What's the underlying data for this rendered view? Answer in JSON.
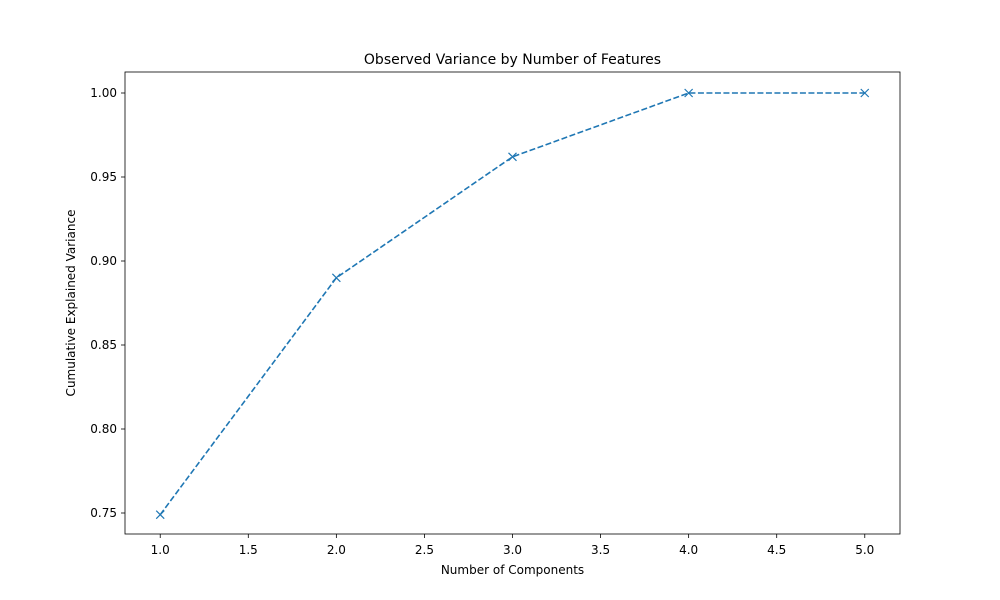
{
  "chart_data": {
    "type": "line",
    "title": "Observed Variance by Number of Features",
    "xlabel": "Number of Components",
    "ylabel": "Cumulative Explained Variance",
    "xlim": [
      0.8,
      5.2
    ],
    "ylim": [
      0.7375,
      1.0125
    ],
    "x_ticks": [
      "1.0",
      "1.5",
      "2.0",
      "2.5",
      "3.0",
      "3.5",
      "4.0",
      "4.5",
      "5.0"
    ],
    "y_ticks": [
      "0.75",
      "0.80",
      "0.85",
      "0.90",
      "0.95",
      "1.00"
    ],
    "grid": false,
    "series": [
      {
        "x": [
          1,
          2,
          3,
          4,
          5
        ],
        "y": [
          0.749,
          0.89,
          0.962,
          1.0,
          1.0
        ],
        "color": "#1f77b4",
        "line_style": "dashed",
        "marker": "x"
      }
    ]
  }
}
